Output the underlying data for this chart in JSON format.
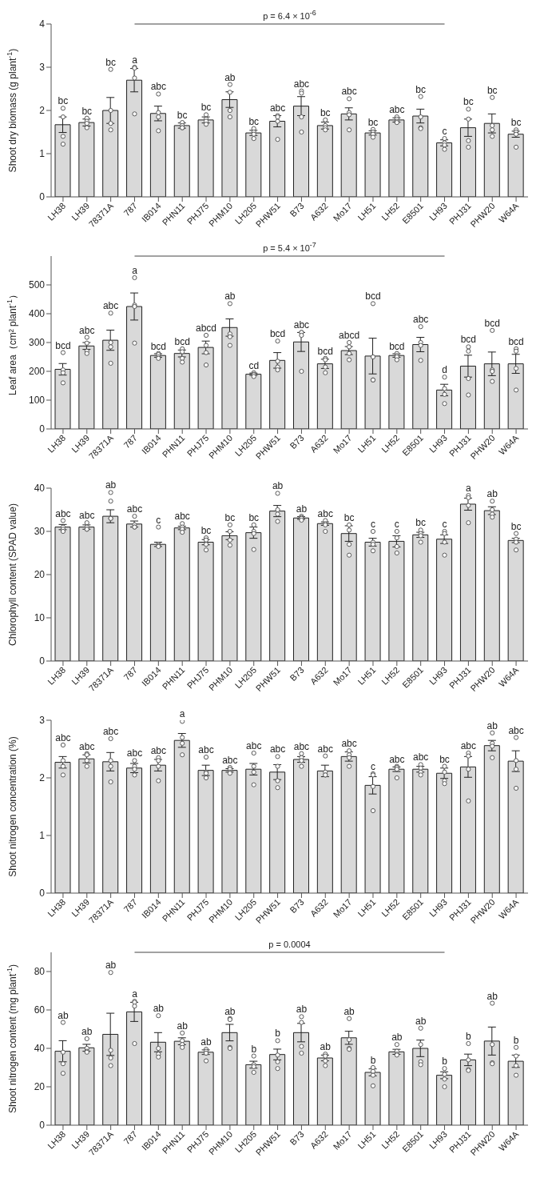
{
  "chart_data": [
    {
      "type": "bar",
      "ylabel": "Shoot dry biomass (g plant$^{-1}$)",
      "categories": [
        "LH38",
        "LH39",
        "78371A",
        "787",
        "IB014",
        "PHN11",
        "PHJ75",
        "PHM10",
        "LH205",
        "PHW51",
        "B73",
        "A632",
        "Mo17",
        "LH51",
        "LH52",
        "E8501",
        "LH93",
        "PHJ31",
        "PHW20",
        "W64A"
      ],
      "ylim": [
        0,
        4
      ],
      "yticks": [
        0,
        1,
        2,
        3,
        4
      ],
      "grid": false,
      "legend": false,
      "annotations": [
        "p = 6.4 × 10$^{-6}$",
        {
          "text": "bc",
          "x": "LH38",
          "y": 2.05
        },
        {
          "text": "bc",
          "x": "LH39",
          "y": 1.82
        },
        {
          "text": "bc",
          "x": "78371A",
          "y": 2.95
        },
        {
          "text": "a",
          "x": "787",
          "y": 3.0
        },
        {
          "text": "abc",
          "x": "IB014",
          "y": 2.38
        },
        {
          "text": "bc",
          "x": "PHN11",
          "y": 1.72
        },
        {
          "text": "bc",
          "x": "PHJ75",
          "y": 1.9
        },
        {
          "text": "ab",
          "x": "PHM10",
          "y": 2.6
        },
        {
          "text": "bc",
          "x": "LH205",
          "y": 1.58
        },
        {
          "text": "abc",
          "x": "PHW51",
          "y": 1.88
        },
        {
          "text": "abc",
          "x": "B73",
          "y": 2.45
        },
        {
          "text": "bc",
          "x": "A632",
          "y": 1.78
        },
        {
          "text": "abc",
          "x": "Mo17",
          "y": 2.27
        },
        {
          "text": "bc",
          "x": "LH51",
          "y": 1.56
        },
        {
          "text": "abc",
          "x": "LH52",
          "y": 1.85
        },
        {
          "text": "bc",
          "x": "E8501",
          "y": 2.32
        },
        {
          "text": "c",
          "x": "LH93",
          "y": 1.35
        },
        {
          "text": "bc",
          "x": "PHJ31",
          "y": 2.03
        },
        {
          "text": "bc",
          "x": "PHW20",
          "y": 2.3
        },
        {
          "text": "bc",
          "x": "W64A",
          "y": 1.55
        }
      ],
      "series": [
        {
          "type": "bar",
          "color": "#d9d9d9",
          "values": [
            1.67,
            1.72,
            2.0,
            2.7,
            1.93,
            1.65,
            1.78,
            2.25,
            1.48,
            1.75,
            2.1,
            1.65,
            1.92,
            1.48,
            1.78,
            1.87,
            1.25,
            1.6,
            1.7,
            1.45
          ],
          "errors": [
            0.18,
            0.08,
            0.3,
            0.27,
            0.17,
            0.06,
            0.07,
            0.18,
            0.06,
            0.13,
            0.22,
            0.08,
            0.14,
            0.05,
            0.05,
            0.16,
            0.07,
            0.2,
            0.22,
            0.07
          ]
        },
        {
          "type": "scatter",
          "color": "#595959",
          "marker": "circle",
          "x": [
            "LH38",
            "LH38",
            "LH38",
            "LH38",
            "LH39",
            "LH39",
            "LH39",
            "LH39",
            "78371A",
            "78371A",
            "78371A",
            "78371A",
            "787",
            "787",
            "787",
            "787",
            "IB014",
            "IB014",
            "IB014",
            "IB014",
            "PHN11",
            "PHN11",
            "PHN11",
            "PHN11",
            "PHJ75",
            "PHJ75",
            "PHJ75",
            "PHJ75",
            "PHM10",
            "PHM10",
            "PHM10",
            "PHM10",
            "LH205",
            "LH205",
            "LH205",
            "LH205",
            "PHW51",
            "PHW51",
            "PHW51",
            "PHW51",
            "B73",
            "B73",
            "B73",
            "B73",
            "A632",
            "A632",
            "A632",
            "A632",
            "Mo17",
            "Mo17",
            "Mo17",
            "Mo17",
            "LH51",
            "LH51",
            "LH51",
            "LH51",
            "LH52",
            "LH52",
            "LH52",
            "LH52",
            "E8501",
            "E8501",
            "E8501",
            "E8501",
            "LH93",
            "LH93",
            "LH93",
            "LH93",
            "PHJ31",
            "PHJ31",
            "PHJ31",
            "PHJ31",
            "PHW20",
            "PHW20",
            "PHW20",
            "PHW20",
            "W64A",
            "W64A",
            "W64A",
            "W64A"
          ],
          "values": [
            2.05,
            1.85,
            1.4,
            1.22,
            1.82,
            1.75,
            1.7,
            1.6,
            2.95,
            2.0,
            1.7,
            1.55,
            3.0,
            2.98,
            2.75,
            1.92,
            2.38,
            1.95,
            1.85,
            1.53,
            1.72,
            1.65,
            1.6,
            1.6,
            1.9,
            1.8,
            1.75,
            1.68,
            2.6,
            2.42,
            2.0,
            1.85,
            1.58,
            1.5,
            1.45,
            1.35,
            1.88,
            1.85,
            1.75,
            1.33,
            2.45,
            2.4,
            1.85,
            1.5,
            1.78,
            1.65,
            1.6,
            1.55,
            2.27,
            1.95,
            1.9,
            1.55,
            1.56,
            1.5,
            1.45,
            1.38,
            1.85,
            1.8,
            1.75,
            1.72,
            2.32,
            1.85,
            1.6,
            1.58,
            1.35,
            1.25,
            1.2,
            1.1,
            2.03,
            1.8,
            1.3,
            1.15,
            2.3,
            1.65,
            1.55,
            1.4,
            1.55,
            1.5,
            1.45,
            1.15
          ]
        }
      ]
    },
    {
      "type": "bar",
      "ylabel": "Leaf area（cm² plant$^{-1}$）",
      "categories": [
        "LH38",
        "LH39",
        "78371A",
        "787",
        "IB014",
        "PHN11",
        "PHJ75",
        "PHM10",
        "LH205",
        "PHW51",
        "B73",
        "A632",
        "Mo17",
        "LH51",
        "LH52",
        "E8501",
        "LH93",
        "PHJ31",
        "PHW20",
        "W64A"
      ],
      "ylim": [
        0,
        600
      ],
      "yticks": [
        0,
        100,
        200,
        300,
        400,
        500
      ],
      "grid": false,
      "legend": false,
      "annotations": [
        "p = 5.4 × 10$^{-7}$",
        {
          "text": "bcd",
          "x": "LH38",
          "y": 265
        },
        {
          "text": "abc",
          "x": "LH39",
          "y": 318
        },
        {
          "text": "abc",
          "x": "78371A",
          "y": 402
        },
        {
          "text": "a",
          "x": "787",
          "y": 525
        },
        {
          "text": "bcd",
          "x": "IB014",
          "y": 262
        },
        {
          "text": "bcd",
          "x": "PHN11",
          "y": 278
        },
        {
          "text": "abcd",
          "x": "PHJ75",
          "y": 325
        },
        {
          "text": "ab",
          "x": "PHM10",
          "y": 435
        },
        {
          "text": "cd",
          "x": "LH205",
          "y": 195
        },
        {
          "text": "bcd",
          "x": "PHW51",
          "y": 305
        },
        {
          "text": "abc",
          "x": "B73",
          "y": 335
        },
        {
          "text": "bcd",
          "x": "A632",
          "y": 245
        },
        {
          "text": "abcd",
          "x": "Mo17",
          "y": 300
        },
        {
          "text": "bcd",
          "x": "LH51",
          "y": 435
        },
        {
          "text": "bcd",
          "x": "LH52",
          "y": 262
        },
        {
          "text": "abc",
          "x": "E8501",
          "y": 355
        },
        {
          "text": "d",
          "x": "LH93",
          "y": 180
        },
        {
          "text": "bcd",
          "x": "PHJ31",
          "y": 285
        },
        {
          "text": "bcd",
          "x": "PHW20",
          "y": 342
        },
        {
          "text": "bcd",
          "x": "W64A",
          "y": 278
        }
      ],
      "series": [
        {
          "type": "bar",
          "color": "#d9d9d9",
          "values": [
            207,
            288,
            308,
            425,
            255,
            262,
            283,
            352,
            190,
            238,
            302,
            226,
            272,
            253,
            255,
            293,
            135,
            218,
            226,
            226
          ],
          "errors": [
            20,
            12,
            35,
            47,
            6,
            12,
            22,
            30,
            4,
            27,
            33,
            16,
            14,
            62,
            6,
            25,
            20,
            38,
            41,
            33
          ]
        },
        {
          "type": "scatter",
          "color": "#595959",
          "marker": "circle",
          "x": [
            "LH38",
            "LH38",
            "LH38",
            "LH38",
            "LH39",
            "LH39",
            "LH39",
            "LH39",
            "78371A",
            "78371A",
            "78371A",
            "78371A",
            "787",
            "787",
            "787",
            "787",
            "IB014",
            "IB014",
            "IB014",
            "IB014",
            "PHN11",
            "PHN11",
            "PHN11",
            "PHN11",
            "PHJ75",
            "PHJ75",
            "PHJ75",
            "PHJ75",
            "PHM10",
            "PHM10",
            "PHM10",
            "PHM10",
            "LH205",
            "LH205",
            "LH205",
            "LH205",
            "PHW51",
            "PHW51",
            "PHW51",
            "PHW51",
            "B73",
            "B73",
            "B73",
            "B73",
            "A632",
            "A632",
            "A632",
            "A632",
            "Mo17",
            "Mo17",
            "Mo17",
            "Mo17",
            "LH51",
            "LH51",
            "LH51",
            "LH51",
            "LH52",
            "LH52",
            "LH52",
            "LH52",
            "E8501",
            "E8501",
            "E8501",
            "E8501",
            "LH93",
            "LH93",
            "LH93",
            "LH93",
            "PHJ31",
            "PHJ31",
            "PHJ31",
            "PHJ31",
            "PHW20",
            "PHW20",
            "PHW20",
            "PHW20",
            "W64A",
            "W64A",
            "W64A",
            "W64A"
          ],
          "values": [
            265,
            205,
            195,
            160,
            318,
            298,
            270,
            262,
            402,
            300,
            285,
            228,
            525,
            430,
            425,
            298,
            262,
            258,
            250,
            245,
            278,
            268,
            245,
            232,
            325,
            290,
            265,
            222,
            435,
            330,
            320,
            290,
            195,
            190,
            188,
            182,
            305,
            235,
            215,
            205,
            335,
            335,
            325,
            200,
            245,
            240,
            215,
            195,
            300,
            285,
            262,
            240,
            435,
            250,
            170,
            170,
            262,
            255,
            250,
            240,
            355,
            300,
            290,
            238,
            180,
            140,
            120,
            88,
            285,
            270,
            175,
            118,
            342,
            205,
            200,
            165,
            278,
            270,
            210,
            135
          ]
        }
      ]
    },
    {
      "type": "bar",
      "ylabel": "Chlorophyll content (SPAD value)",
      "categories": [
        "LH38",
        "LH39",
        "78371A",
        "787",
        "IB014",
        "PHN11",
        "PHJ75",
        "PHM10",
        "LH205",
        "PHW51",
        "B73",
        "A632",
        "Mo17",
        "LH51",
        "LH52",
        "E8501",
        "LH93",
        "PHJ31",
        "PHW20",
        "W64A"
      ],
      "ylim": [
        0,
        40
      ],
      "yticks": [
        0,
        10,
        20,
        30,
        40
      ],
      "grid": false,
      "legend": false,
      "annotations": [
        {
          "text": "abc",
          "x": "LH38",
          "y": 32.5
        },
        {
          "text": "abc",
          "x": "LH39",
          "y": 32
        },
        {
          "text": "ab",
          "x": "78371A",
          "y": 39
        },
        {
          "text": "abc",
          "x": "787",
          "y": 33.5
        },
        {
          "text": "c",
          "x": "IB014",
          "y": 31
        },
        {
          "text": "abc",
          "x": "PHN11",
          "y": 31.8
        },
        {
          "text": "bc",
          "x": "PHJ75",
          "y": 28.5
        },
        {
          "text": "bc",
          "x": "PHM10",
          "y": 31.5
        },
        {
          "text": "bc",
          "x": "LH205",
          "y": 31.5
        },
        {
          "text": "ab",
          "x": "PHW51",
          "y": 38.8
        },
        {
          "text": "ab",
          "x": "B73",
          "y": 33.5
        },
        {
          "text": "abc",
          "x": "A632",
          "y": 32.5
        },
        {
          "text": "bc",
          "x": "Mo17",
          "y": 31.5
        },
        {
          "text": "c",
          "x": "LH51",
          "y": 30
        },
        {
          "text": "c",
          "x": "LH52",
          "y": 30
        },
        {
          "text": "bc",
          "x": "E8501",
          "y": 30.3
        },
        {
          "text": "c",
          "x": "LH93",
          "y": 30
        },
        {
          "text": "a",
          "x": "PHJ31",
          "y": 38.3
        },
        {
          "text": "ab",
          "x": "PHW20",
          "y": 37
        },
        {
          "text": "bc",
          "x": "W64A",
          "y": 29.5
        }
      ],
      "series": [
        {
          "type": "bar",
          "color": "#d9d9d9",
          "values": [
            31,
            31,
            33.5,
            31.7,
            27,
            30.8,
            27.5,
            29,
            29.7,
            34.7,
            33.1,
            31.8,
            29.5,
            27.5,
            27.7,
            29.2,
            28.2,
            36.3,
            34.8,
            27.9
          ],
          "errors": [
            0.6,
            0.5,
            1.5,
            0.7,
            0.5,
            0.4,
            0.6,
            0.9,
            1.3,
            1.3,
            0.3,
            0.4,
            1.8,
            0.9,
            1.3,
            0.6,
            1,
            1.4,
            0.9,
            0.5
          ]
        },
        {
          "type": "scatter",
          "color": "#595959",
          "marker": "circle",
          "x": [
            "LH38",
            "LH38",
            "LH38",
            "LH38",
            "LH39",
            "LH39",
            "LH39",
            "LH39",
            "78371A",
            "78371A",
            "78371A",
            "78371A",
            "787",
            "787",
            "787",
            "787",
            "IB014",
            "IB014",
            "IB014",
            "IB014",
            "PHN11",
            "PHN11",
            "PHN11",
            "PHN11",
            "PHJ75",
            "PHJ75",
            "PHJ75",
            "PHJ75",
            "PHM10",
            "PHM10",
            "PHM10",
            "PHM10",
            "LH205",
            "LH205",
            "LH205",
            "LH205",
            "PHW51",
            "PHW51",
            "PHW51",
            "PHW51",
            "B73",
            "B73",
            "B73",
            "B73",
            "A632",
            "A632",
            "A632",
            "A632",
            "Mo17",
            "Mo17",
            "Mo17",
            "Mo17",
            "LH51",
            "LH51",
            "LH51",
            "LH51",
            "LH52",
            "LH52",
            "LH52",
            "LH52",
            "E8501",
            "E8501",
            "E8501",
            "E8501",
            "LH93",
            "LH93",
            "LH93",
            "LH93",
            "PHJ31",
            "PHJ31",
            "PHJ31",
            "PHJ31",
            "PHW20",
            "PHW20",
            "PHW20",
            "PHW20",
            "W64A",
            "W64A",
            "W64A",
            "W64A"
          ],
          "values": [
            32.5,
            31,
            30.5,
            30,
            32,
            31,
            30.5,
            30.5,
            39,
            37,
            33,
            33,
            33.5,
            31.5,
            31,
            31,
            31,
            27,
            26.7,
            26.5,
            31.8,
            31,
            30.5,
            29.8,
            28.5,
            28,
            27,
            25.7,
            31.5,
            30,
            28,
            26.8,
            31.5,
            30,
            29.5,
            25.8,
            38.8,
            35,
            34,
            32.3,
            33.5,
            33.2,
            33,
            32.6,
            32.5,
            31.8,
            31.5,
            30,
            31.5,
            30.3,
            27,
            24.5,
            30,
            27.5,
            27,
            25.5,
            30,
            28.5,
            26.5,
            25,
            30.3,
            29.5,
            29,
            27.5,
            30,
            29.5,
            27.5,
            24.5,
            38.3,
            37.8,
            36,
            32,
            37,
            35,
            34,
            33.3,
            29.5,
            28.2,
            27.5,
            25.7
          ]
        }
      ]
    },
    {
      "type": "bar",
      "ylabel": "Shoot nitrogen concentration (%)",
      "categories": [
        "LH38",
        "LH39",
        "78371A",
        "787",
        "IB014",
        "PHN11",
        "PHJ75",
        "PHM10",
        "LH205",
        "PHW51",
        "B73",
        "A632",
        "Mo17",
        "LH51",
        "LH52",
        "E8501",
        "LH93",
        "PHJ31",
        "PHW20",
        "W64A"
      ],
      "ylim": [
        0,
        3
      ],
      "yticks": [
        0,
        1,
        2,
        3
      ],
      "grid": false,
      "legend": false,
      "annotations": [
        {
          "text": "abc",
          "x": "LH38",
          "y": 2.57
        },
        {
          "text": "abc",
          "x": "LH39",
          "y": 2.42
        },
        {
          "text": "abc",
          "x": "78371A",
          "y": 2.68
        },
        {
          "text": "abc",
          "x": "787",
          "y": 2.3
        },
        {
          "text": "abc",
          "x": "IB014",
          "y": 2.35
        },
        {
          "text": "a",
          "x": "PHN11",
          "y": 2.98
        },
        {
          "text": "abc",
          "x": "PHJ75",
          "y": 2.36
        },
        {
          "text": "abc",
          "x": "PHM10",
          "y": 2.18
        },
        {
          "text": "abc",
          "x": "LH205",
          "y": 2.43
        },
        {
          "text": "abc",
          "x": "PHW51",
          "y": 2.37
        },
        {
          "text": "abc",
          "x": "B73",
          "y": 2.42
        },
        {
          "text": "abc",
          "x": "A632",
          "y": 2.38
        },
        {
          "text": "abc",
          "x": "Mo17",
          "y": 2.47
        },
        {
          "text": "c",
          "x": "LH51",
          "y": 2.07
        },
        {
          "text": "abc",
          "x": "LH52",
          "y": 2.2
        },
        {
          "text": "abc",
          "x": "E8501",
          "y": 2.23
        },
        {
          "text": "bc",
          "x": "LH93",
          "y": 2.2
        },
        {
          "text": "abc",
          "x": "PHJ31",
          "y": 2.43
        },
        {
          "text": "ab",
          "x": "PHW20",
          "y": 2.78
        },
        {
          "text": "abc",
          "x": "W64A",
          "y": 2.7
        }
      ],
      "series": [
        {
          "type": "bar",
          "color": "#d9d9d9",
          "values": [
            2.27,
            2.33,
            2.28,
            2.17,
            2.22,
            2.65,
            2.13,
            2.13,
            2.15,
            2.1,
            2.32,
            2.12,
            2.37,
            1.87,
            2.15,
            2.15,
            2.08,
            2.19,
            2.56,
            2.29
          ],
          "errors": [
            0.1,
            0.07,
            0.16,
            0.08,
            0.1,
            0.12,
            0.09,
            0.03,
            0.1,
            0.13,
            0.05,
            0.1,
            0.08,
            0.15,
            0.04,
            0.05,
            0.09,
            0.18,
            0.09,
            0.18
          ]
        },
        {
          "type": "scatter",
          "color": "#595959",
          "marker": "circle",
          "x": [
            "LH38",
            "LH38",
            "LH38",
            "LH38",
            "LH39",
            "LH39",
            "LH39",
            "LH39",
            "78371A",
            "78371A",
            "78371A",
            "78371A",
            "787",
            "787",
            "787",
            "787",
            "IB014",
            "IB014",
            "IB014",
            "IB014",
            "PHN11",
            "PHN11",
            "PHN11",
            "PHN11",
            "PHJ75",
            "PHJ75",
            "PHJ75",
            "PHJ75",
            "PHM10",
            "PHM10",
            "PHM10",
            "PHM10",
            "LH205",
            "LH205",
            "LH205",
            "LH205",
            "PHW51",
            "PHW51",
            "PHW51",
            "PHW51",
            "B73",
            "B73",
            "B73",
            "B73",
            "A632",
            "A632",
            "A632",
            "A632",
            "Mo17",
            "Mo17",
            "Mo17",
            "Mo17",
            "LH51",
            "LH51",
            "LH51",
            "LH51",
            "LH52",
            "LH52",
            "LH52",
            "LH52",
            "E8501",
            "E8501",
            "E8501",
            "E8501",
            "LH93",
            "LH93",
            "LH93",
            "LH93",
            "PHJ31",
            "PHJ31",
            "PHJ31",
            "PHJ31",
            "PHW20",
            "PHW20",
            "PHW20",
            "PHW20",
            "W64A",
            "W64A",
            "W64A",
            "W64A"
          ],
          "values": [
            2.57,
            2.3,
            2.2,
            2.05,
            2.42,
            2.4,
            2.3,
            2.2,
            2.68,
            2.3,
            2.2,
            1.93,
            2.3,
            2.2,
            2.15,
            2.05,
            2.35,
            2.3,
            2.2,
            1.95,
            2.98,
            2.7,
            2.6,
            2.4,
            2.36,
            2.1,
            2.08,
            2.0,
            2.18,
            2.15,
            2.1,
            2.08,
            2.43,
            2.2,
            2.1,
            1.88,
            2.37,
            2.2,
            1.95,
            1.83,
            2.42,
            2.35,
            2.3,
            2.2,
            2.38,
            2.1,
            2.05,
            2.05,
            2.47,
            2.4,
            2.35,
            2.2,
            2.07,
            2.05,
            1.85,
            1.43,
            2.2,
            2.18,
            2.15,
            2.0,
            2.23,
            2.17,
            2.1,
            2.05,
            2.2,
            2.1,
            1.95,
            1.9,
            2.43,
            2.38,
            2.15,
            1.6,
            2.78,
            2.6,
            2.55,
            2.35,
            2.7,
            2.3,
            2.15,
            1.82
          ]
        }
      ]
    },
    {
      "type": "bar",
      "ylabel": "Shoot nitrogen content (mg plant$^{-1}$)",
      "categories": [
        "LH38",
        "LH39",
        "78371A",
        "787",
        "IB014",
        "PHN11",
        "PHJ75",
        "PHM10",
        "LH205",
        "PHW51",
        "B73",
        "A632",
        "Mo17",
        "LH51",
        "LH52",
        "E8501",
        "LH93",
        "PHJ31",
        "PHW20",
        "W64A"
      ],
      "ylim": [
        0,
        90
      ],
      "yticks": [
        0,
        20,
        40,
        60,
        80
      ],
      "grid": false,
      "legend": false,
      "annotations": [
        "p = 0.0004",
        {
          "text": "ab",
          "x": "LH38",
          "y": 53.5
        },
        {
          "text": "ab",
          "x": "LH39",
          "y": 45
        },
        {
          "text": "ab",
          "x": "78371A",
          "y": 79.5
        },
        {
          "text": "a",
          "x": "787",
          "y": 64.5
        },
        {
          "text": "ab",
          "x": "IB014",
          "y": 57
        },
        {
          "text": "ab",
          "x": "PHN11",
          "y": 48
        },
        {
          "text": "ab",
          "x": "PHJ75",
          "y": 39.5
        },
        {
          "text": "ab",
          "x": "PHM10",
          "y": 55.5
        },
        {
          "text": "b",
          "x": "LH205",
          "y": 36
        },
        {
          "text": "b",
          "x": "PHW51",
          "y": 44
        },
        {
          "text": "ab",
          "x": "B73",
          "y": 56.5
        },
        {
          "text": "ab",
          "x": "A632",
          "y": 37
        },
        {
          "text": "ab",
          "x": "Mo17",
          "y": 55.5
        },
        {
          "text": "b",
          "x": "LH51",
          "y": 30
        },
        {
          "text": "ab",
          "x": "LH52",
          "y": 42
        },
        {
          "text": "ab",
          "x": "E8501",
          "y": 50.5
        },
        {
          "text": "b",
          "x": "LH93",
          "y": 29.5
        },
        {
          "text": "b",
          "x": "PHJ31",
          "y": 42.5
        },
        {
          "text": "ab",
          "x": "PHW20",
          "y": 63.5
        },
        {
          "text": "b",
          "x": "W64A",
          "y": 40.5
        }
      ],
      "series": [
        {
          "type": "bar",
          "color": "#d9d9d9",
          "values": [
            38.5,
            40.3,
            47.3,
            59,
            43.2,
            43.7,
            38,
            48.2,
            31.5,
            36.8,
            48.2,
            35,
            45.5,
            27.5,
            38.2,
            40,
            26,
            34,
            43.8,
            33.3
          ],
          "errors": [
            5.5,
            1.8,
            11,
            5,
            5,
            1.8,
            1.2,
            4.3,
            1.8,
            2.8,
            4.8,
            1.5,
            3.4,
            1.8,
            1.3,
            4.3,
            1.8,
            3,
            7.3,
            3.2
          ]
        },
        {
          "type": "scatter",
          "color": "#595959",
          "marker": "circle",
          "x": [
            "LH38",
            "LH38",
            "LH38",
            "LH38",
            "LH39",
            "LH39",
            "LH39",
            "LH39",
            "78371A",
            "78371A",
            "78371A",
            "78371A",
            "787",
            "787",
            "787",
            "787",
            "IB014",
            "IB014",
            "IB014",
            "IB014",
            "PHN11",
            "PHN11",
            "PHN11",
            "PHN11",
            "PHJ75",
            "PHJ75",
            "PHJ75",
            "PHJ75",
            "PHM10",
            "PHM10",
            "PHM10",
            "PHM10",
            "LH205",
            "LH205",
            "LH205",
            "LH205",
            "PHW51",
            "PHW51",
            "PHW51",
            "PHW51",
            "B73",
            "B73",
            "B73",
            "B73",
            "A632",
            "A632",
            "A632",
            "A632",
            "Mo17",
            "Mo17",
            "Mo17",
            "Mo17",
            "LH51",
            "LH51",
            "LH51",
            "LH51",
            "LH52",
            "LH52",
            "LH52",
            "LH52",
            "E8501",
            "E8501",
            "E8501",
            "E8501",
            "LH93",
            "LH93",
            "LH93",
            "LH93",
            "PHJ31",
            "PHJ31",
            "PHJ31",
            "PHJ31",
            "PHW20",
            "PHW20",
            "PHW20",
            "PHW20",
            "W64A",
            "W64A",
            "W64A",
            "W64A"
          ],
          "values": [
            53.5,
            38,
            32,
            27,
            45,
            40,
            38.5,
            38,
            79.5,
            39,
            35,
            31,
            64.5,
            64,
            62,
            42.5,
            57,
            40,
            37,
            35.5,
            48,
            44,
            42,
            40.5,
            39.5,
            38.5,
            37.5,
            33.5,
            55.5,
            55,
            40.5,
            40,
            36,
            31.5,
            30.5,
            27.5,
            44,
            36.5,
            33,
            29.5,
            56.5,
            53.5,
            41,
            37.5,
            37,
            36,
            33.5,
            31,
            55.5,
            44.5,
            40,
            39.5,
            30,
            28,
            26,
            20.5,
            42,
            38.5,
            37,
            36.5,
            50.5,
            42,
            33,
            31.5,
            29.5,
            26.5,
            24,
            20,
            42.5,
            34,
            29,
            28.5,
            63.5,
            42,
            32.5,
            32,
            40.5,
            36,
            31,
            26
          ]
        }
      ]
    }
  ]
}
